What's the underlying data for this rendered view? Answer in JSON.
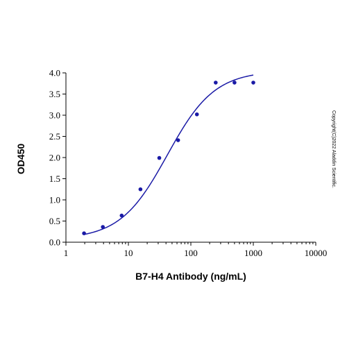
{
  "chart_data": {
    "type": "scatter",
    "title": "",
    "xlabel": "B7-H4 Antibody (ng/mL)",
    "ylabel": "OD450",
    "x_scale": "log",
    "xlim": [
      1,
      10000
    ],
    "ylim": [
      0,
      4.0
    ],
    "x_ticks": [
      1,
      10,
      100,
      1000,
      10000
    ],
    "x_tick_labels": [
      "1",
      "10",
      "100",
      "1000",
      "10000"
    ],
    "y_ticks": [
      0,
      0.5,
      1.0,
      1.5,
      2.0,
      2.5,
      3.0,
      3.5,
      4.0
    ],
    "y_tick_labels": [
      "0.0",
      "0.5",
      "1.0",
      "1.5",
      "2.0",
      "2.5",
      "3.0",
      "3.5",
      "4.0"
    ],
    "grid": false,
    "series": [
      {
        "color": "#1a1aa6",
        "x": [
          1.95,
          3.9,
          7.8,
          15.6,
          31.25,
          62.5,
          125,
          250,
          500,
          1000
        ],
        "y": [
          0.21,
          0.36,
          0.63,
          1.25,
          1.99,
          2.41,
          3.02,
          3.77,
          3.77,
          3.77
        ]
      }
    ],
    "fit_curve": {
      "model": "4PL",
      "bottom": 0.07,
      "top": 4.05,
      "ec50": 42,
      "hill": 1.15,
      "x_range": [
        1.95,
        1000
      ],
      "color": "#1a1aa6"
    },
    "annotation": "Copyright(C)2022 Aladdin Scientific."
  }
}
